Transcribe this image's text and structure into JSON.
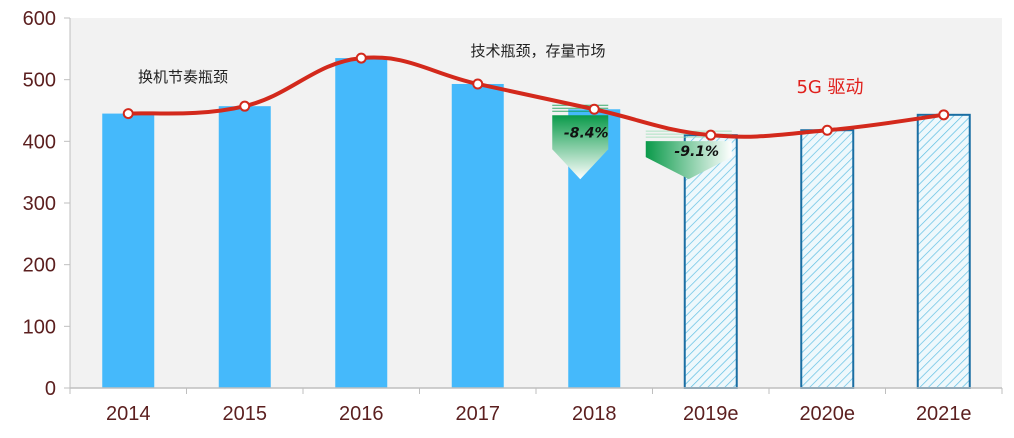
{
  "chart_data": {
    "type": "bar",
    "categories": [
      "2014",
      "2015",
      "2016",
      "2017",
      "2018",
      "2019e",
      "2020e",
      "2021e"
    ],
    "values": [
      445,
      457,
      535,
      493,
      452,
      410,
      418,
      443
    ],
    "forecast": [
      false,
      false,
      false,
      false,
      false,
      true,
      true,
      true
    ],
    "trend_line": [
      445,
      457,
      535,
      493,
      452,
      410,
      418,
      443
    ],
    "ylim": [
      0,
      600
    ],
    "yticks": [
      "0",
      "100",
      "200",
      "300",
      "400",
      "500",
      "600"
    ],
    "grid": false,
    "title": "",
    "xlabel": "",
    "ylabel": "",
    "annotations": [
      {
        "text": "换机节奏瓶颈",
        "near": "2014-2015"
      },
      {
        "text": "技术瓶颈，存量市场",
        "near": "2017"
      },
      {
        "text": "5G 驱动",
        "near": "2020e",
        "color": "#e0201c"
      }
    ],
    "declines": [
      {
        "label": "-8.4%",
        "category": "2018"
      },
      {
        "label": "-9.1%",
        "category": "2019e"
      }
    ],
    "colors": {
      "bar": "#45b9fb",
      "forecast_stroke": "#1a6ea3",
      "forecast_hatch": "#5fbfe3",
      "line": "#d3291c",
      "marker_fill": "#ffffff",
      "arrow_top": "#ffffff",
      "arrow_bottom": "#0a9a4a",
      "plot_bg": "#f2f2f2",
      "axis_text": "#5b1f1f"
    }
  }
}
